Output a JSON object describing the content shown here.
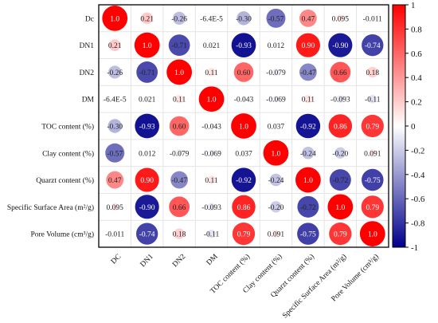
{
  "chart_data": {
    "type": "heatmap",
    "style": "circle correlation matrix",
    "row_labels": [
      "Dc",
      "DN1",
      "DN2",
      "DM",
      "TOC content (%)",
      "Clay content (%)",
      "Quarzt content (%)",
      "Specific Surface Area (m²/g)",
      "Pore Volume (cm³/g)"
    ],
    "col_labels": [
      "DC",
      "DN1",
      "DN2",
      "DM",
      "TOC content (%)",
      "Clay content (%)",
      "Quarzt content (%)",
      "Specific Surface Area (m²/g)",
      "Pore Volume (cm³/g)"
    ],
    "values": [
      [
        1.0,
        0.21,
        -0.26,
        -6.4e-05,
        -0.3,
        -0.57,
        0.47,
        0.095,
        -0.011
      ],
      [
        0.21,
        1.0,
        -0.71,
        0.021,
        -0.93,
        0.012,
        0.9,
        -0.9,
        -0.74
      ],
      [
        -0.26,
        -0.71,
        1.0,
        0.11,
        0.6,
        -0.079,
        -0.47,
        0.66,
        0.18
      ],
      [
        -6.4e-05,
        0.021,
        0.11,
        1.0,
        -0.043,
        -0.069,
        0.11,
        -0.093,
        -0.11
      ],
      [
        -0.3,
        -0.93,
        0.6,
        -0.043,
        1.0,
        0.037,
        -0.92,
        0.86,
        0.79
      ],
      [
        -0.57,
        0.012,
        -0.079,
        -0.069,
        0.037,
        1.0,
        -0.24,
        -0.2,
        0.091
      ],
      [
        0.47,
        0.9,
        -0.47,
        0.11,
        -0.92,
        -0.24,
        1.0,
        -0.72,
        -0.75
      ],
      [
        0.095,
        -0.9,
        0.66,
        -0.093,
        0.86,
        -0.2,
        -0.72,
        1.0,
        0.79
      ],
      [
        -0.011,
        -0.74,
        0.18,
        -0.11,
        0.79,
        0.091,
        -0.75,
        0.79,
        1.0
      ]
    ],
    "cell_labels": [
      [
        "1.0",
        "0.21",
        "-0.26",
        "-6.4E-5",
        "-0.30",
        "-0.57",
        "0.47",
        "0.095",
        "-0.011"
      ],
      [
        "0.21",
        "1.0",
        "-0.71",
        "0.021",
        "-0.93",
        "0.012",
        "0.90",
        "-0.90",
        "-0.74"
      ],
      [
        "-0.26",
        "-0.71",
        "1.0",
        "0.11",
        "0.60",
        "-0.079",
        "-0.47",
        "0.66",
        "0.18"
      ],
      [
        "-6.4E-5",
        "0.021",
        "0.11",
        "1.0",
        "-0.043",
        "-0.069",
        "0.11",
        "-0.093",
        "-0.11"
      ],
      [
        "-0.30",
        "-0.93",
        "0.60",
        "-0.043",
        "1.0",
        "0.037",
        "-0.92",
        "0.86",
        "0.79"
      ],
      [
        "-0.57",
        "0.012",
        "-0.079",
        "-0.069",
        "0.037",
        "1.0",
        "-0.24",
        "-0.20",
        "0.091"
      ],
      [
        "0.47",
        "0.90",
        "-0.47",
        "0.11",
        "-0.92",
        "-0.24",
        "1.0",
        "-0.72",
        "-0.75"
      ],
      [
        "0.095",
        "-0.90",
        "0.66",
        "-0.093",
        "0.86",
        "-0.20",
        "-0.72",
        "1.0",
        "0.79"
      ],
      [
        "-0.011",
        "-0.74",
        "0.18",
        "-0.11",
        "0.79",
        "0.091",
        "-0.75",
        "0.79",
        "1.0"
      ]
    ],
    "colorbar": {
      "range": [
        -1,
        1
      ],
      "ticks": [
        1,
        0.8,
        0.6,
        0.4,
        0.2,
        0,
        -0.2,
        -0.4,
        -0.6,
        -0.8,
        -1
      ],
      "tick_labels": [
        "1",
        "0.8",
        "0.6",
        "0.4",
        "0.2",
        "0",
        "-0.2",
        "-0.4",
        "-0.6",
        "-0.8",
        "-1"
      ],
      "colors": {
        "negative": "#00008B",
        "zero": "#FFFFFF",
        "positive": "#FF0000"
      }
    },
    "grid": true,
    "legend_position": "right",
    "title": "",
    "xlabel": "",
    "ylabel": ""
  }
}
